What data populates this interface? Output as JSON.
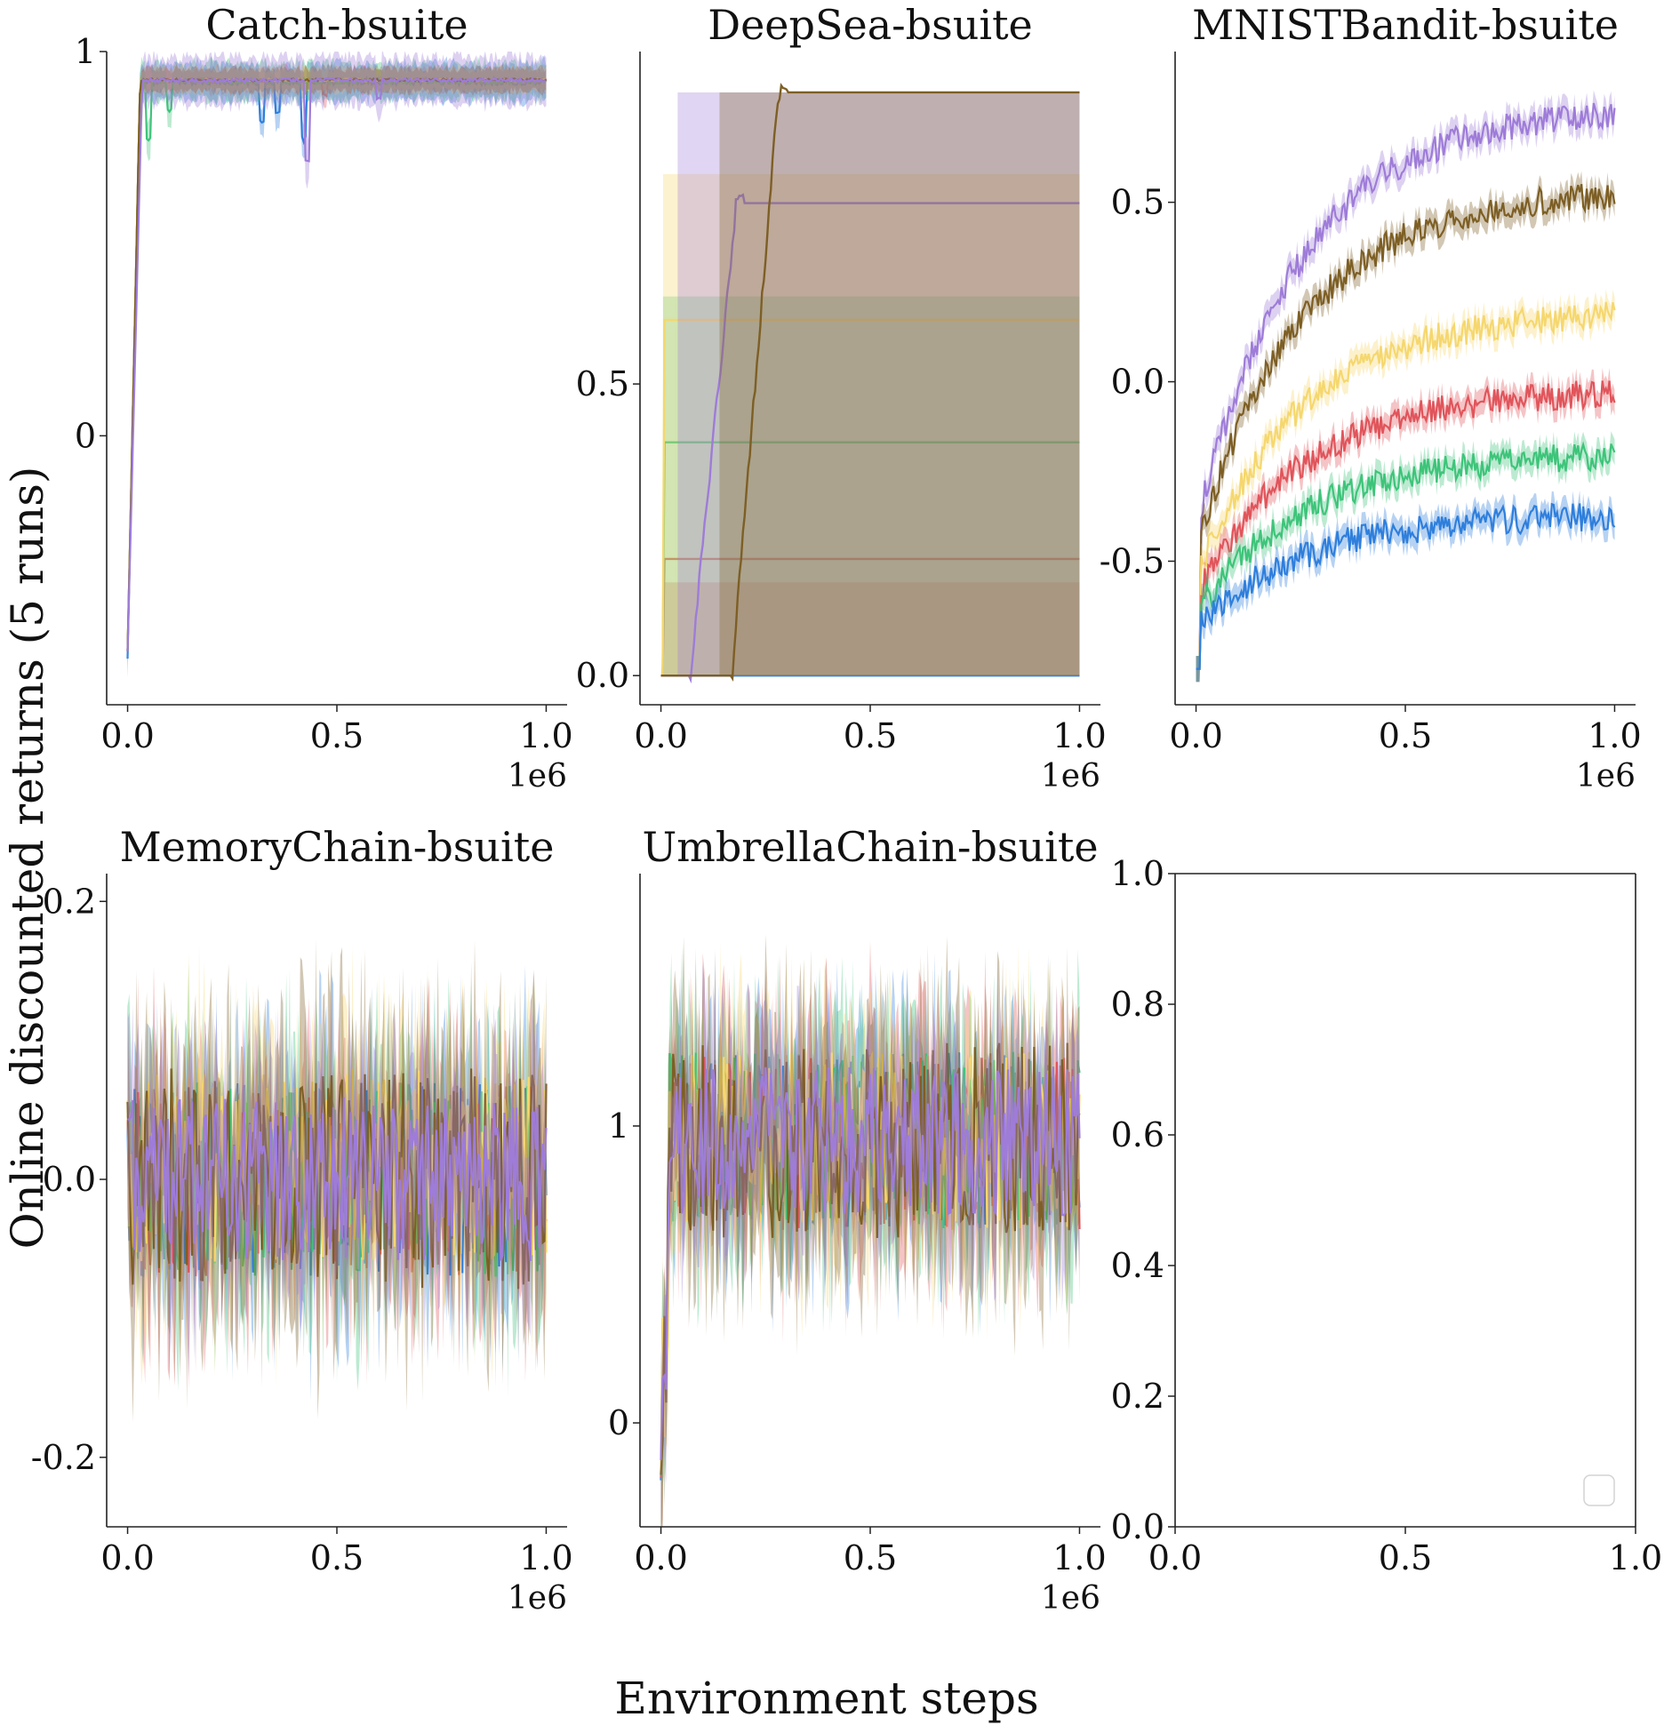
{
  "figure": {
    "xlabel": "Environment steps",
    "ylabel": "Online discounted returns (5 runs)"
  },
  "series_colors": {
    "blue": "#2f7fdc",
    "red": "#e0555b",
    "green": "#3ec47a",
    "yellow": "#f5d76e",
    "brown": "#7d5f25",
    "purple": "#9e7cd8"
  },
  "chart_data": [
    {
      "id": "catch",
      "type": "line",
      "title": "Catch-bsuite",
      "xlim": [
        -0.05,
        1.05
      ],
      "ylim": [
        -0.7,
        1.0
      ],
      "xticks": [
        0.0,
        0.5,
        1.0
      ],
      "xtick_labels": [
        "0.0",
        "0.5",
        "1.0"
      ],
      "x_multiplier": "1e6",
      "yticks": [
        0,
        1
      ],
      "ytick_labels": [
        "0",
        "1"
      ],
      "series": [
        {
          "color": "blue",
          "start": -0.58,
          "plateau": 0.93,
          "rise_end": 0.03,
          "noise": 0.035,
          "band": 0.03,
          "dips": [
            [
              0.32,
              0.18
            ],
            [
              0.36,
              0.12
            ],
            [
              0.42,
              0.25
            ]
          ]
        },
        {
          "color": "red",
          "start": -0.56,
          "plateau": 0.93,
          "rise_end": 0.03,
          "noise": 0.02,
          "band": 0.02,
          "dips": [
            [
              0.47,
              0.06
            ]
          ]
        },
        {
          "color": "green",
          "start": -0.56,
          "plateau": 0.93,
          "rise_end": 0.03,
          "noise": 0.03,
          "band": 0.03,
          "dips": [
            [
              0.05,
              0.25
            ],
            [
              0.1,
              0.12
            ]
          ]
        },
        {
          "color": "yellow",
          "start": -0.56,
          "plateau": 0.93,
          "rise_end": 0.03,
          "noise": 0.015,
          "band": 0.02,
          "dips": []
        },
        {
          "color": "brown",
          "start": -0.56,
          "plateau": 0.93,
          "rise_end": 0.03,
          "noise": 0.015,
          "band": 0.02,
          "dips": []
        },
        {
          "color": "purple",
          "start": -0.56,
          "plateau": 0.93,
          "rise_end": 0.035,
          "noise": 0.02,
          "band": 0.04,
          "dips": [
            [
              0.43,
              0.35
            ],
            [
              0.6,
              0.08
            ]
          ]
        }
      ]
    },
    {
      "id": "deepsea",
      "type": "line",
      "title": "DeepSea-bsuite",
      "xlim": [
        -0.05,
        1.05
      ],
      "ylim": [
        -0.05,
        1.07
      ],
      "xticks": [
        0.0,
        0.5,
        1.0
      ],
      "xtick_labels": [
        "0.0",
        "0.5",
        "1.0"
      ],
      "x_multiplier": "1e6",
      "yticks": [
        0.0,
        0.5
      ],
      "ytick_labels": [
        "0.0",
        "0.5"
      ],
      "series": [
        {
          "color": "blue",
          "step_x": 0.0,
          "level": 0.0,
          "band": [
            0.0,
            0.0
          ]
        },
        {
          "color": "red",
          "step_x": 0.0,
          "level": 0.2,
          "band": [
            0.0,
            0.16
          ]
        },
        {
          "color": "green",
          "step_x": 0.0,
          "level": 0.4,
          "band": [
            0.0,
            0.65
          ]
        },
        {
          "color": "yellow",
          "step_x": 0.0,
          "level": 0.61,
          "band": [
            0.0,
            0.86
          ]
        },
        {
          "color": "purple",
          "step_x": 0.1,
          "level": 0.81,
          "band": [
            0.0,
            1.0
          ]
        },
        {
          "color": "brown",
          "step_x": 0.2,
          "level": 1.0,
          "band": [
            0.0,
            1.0
          ]
        }
      ]
    },
    {
      "id": "mnistbandit",
      "type": "line",
      "title": "MNISTBandit-bsuite",
      "xlim": [
        -0.05,
        1.05
      ],
      "ylim": [
        -0.9,
        0.92
      ],
      "xticks": [
        0.0,
        0.5,
        1.0
      ],
      "xtick_labels": [
        "0.0",
        "0.5",
        "1.0"
      ],
      "x_multiplier": "1e6",
      "yticks": [
        -0.5,
        0.0,
        0.5
      ],
      "ytick_labels": [
        "-0.5",
        "0.0",
        "0.5"
      ],
      "series": [
        {
          "color": "purple",
          "start": -0.8,
          "end": 0.77,
          "noise": 0.04
        },
        {
          "color": "brown",
          "start": -0.8,
          "end": 0.54,
          "noise": 0.04
        },
        {
          "color": "yellow",
          "start": -0.8,
          "end": 0.2,
          "noise": 0.04
        },
        {
          "color": "red",
          "start": -0.8,
          "end": -0.02,
          "noise": 0.04
        },
        {
          "color": "green",
          "start": -0.8,
          "end": -0.2,
          "noise": 0.04
        },
        {
          "color": "blue",
          "start": -0.8,
          "end": -0.37,
          "noise": 0.04
        }
      ]
    },
    {
      "id": "memorychain",
      "type": "line",
      "title": "MemoryChain-bsuite",
      "xlim": [
        -0.05,
        1.05
      ],
      "ylim": [
        -0.25,
        0.22
      ],
      "xticks": [
        0.0,
        0.5,
        1.0
      ],
      "xtick_labels": [
        "0.0",
        "0.5",
        "1.0"
      ],
      "x_multiplier": "1e6",
      "yticks": [
        -0.2,
        0.0,
        0.2
      ],
      "ytick_labels": [
        "-0.2",
        "0.0",
        "0.2"
      ],
      "series": [
        {
          "color": "blue",
          "mean": 0.0,
          "spread": 0.07
        },
        {
          "color": "red",
          "mean": 0.0,
          "spread": 0.07
        },
        {
          "color": "green",
          "mean": 0.0,
          "spread": 0.07
        },
        {
          "color": "yellow",
          "mean": 0.01,
          "spread": 0.07
        },
        {
          "color": "brown",
          "mean": 0.0,
          "spread": 0.08
        },
        {
          "color": "purple",
          "mean": 0.0,
          "spread": 0.06
        }
      ]
    },
    {
      "id": "umbrellachain",
      "type": "line",
      "title": "UmbrellaChain-bsuite",
      "xlim": [
        -0.05,
        1.05
      ],
      "ylim": [
        -0.35,
        1.85
      ],
      "xticks": [
        0.0,
        0.5,
        1.0
      ],
      "xtick_labels": [
        "0.0",
        "0.5",
        "1.0"
      ],
      "x_multiplier": "1e6",
      "yticks": [
        0,
        1
      ],
      "ytick_labels": [
        "0",
        "1"
      ],
      "series": [
        {
          "color": "blue",
          "mean": 0.95,
          "spread": 0.3
        },
        {
          "color": "red",
          "mean": 0.95,
          "spread": 0.3
        },
        {
          "color": "green",
          "mean": 0.95,
          "spread": 0.3
        },
        {
          "color": "yellow",
          "mean": 0.95,
          "spread": 0.3
        },
        {
          "color": "brown",
          "mean": 0.95,
          "spread": 0.33
        },
        {
          "color": "purple",
          "mean": 0.95,
          "spread": 0.25
        }
      ]
    },
    {
      "id": "empty",
      "type": "line",
      "title": "",
      "xlim": [
        0.0,
        1.0
      ],
      "ylim": [
        0.0,
        1.0
      ],
      "xticks": [
        0.0,
        0.5,
        1.0
      ],
      "xtick_labels": [
        "0.0",
        "0.5",
        "1.0"
      ],
      "x_multiplier": "",
      "yticks": [
        0.0,
        0.2,
        0.4,
        0.6,
        0.8,
        1.0
      ],
      "ytick_labels": [
        "0.0",
        "0.2",
        "0.4",
        "0.6",
        "0.8",
        "1.0"
      ],
      "series": [],
      "legend": "lower-right (empty)"
    }
  ]
}
